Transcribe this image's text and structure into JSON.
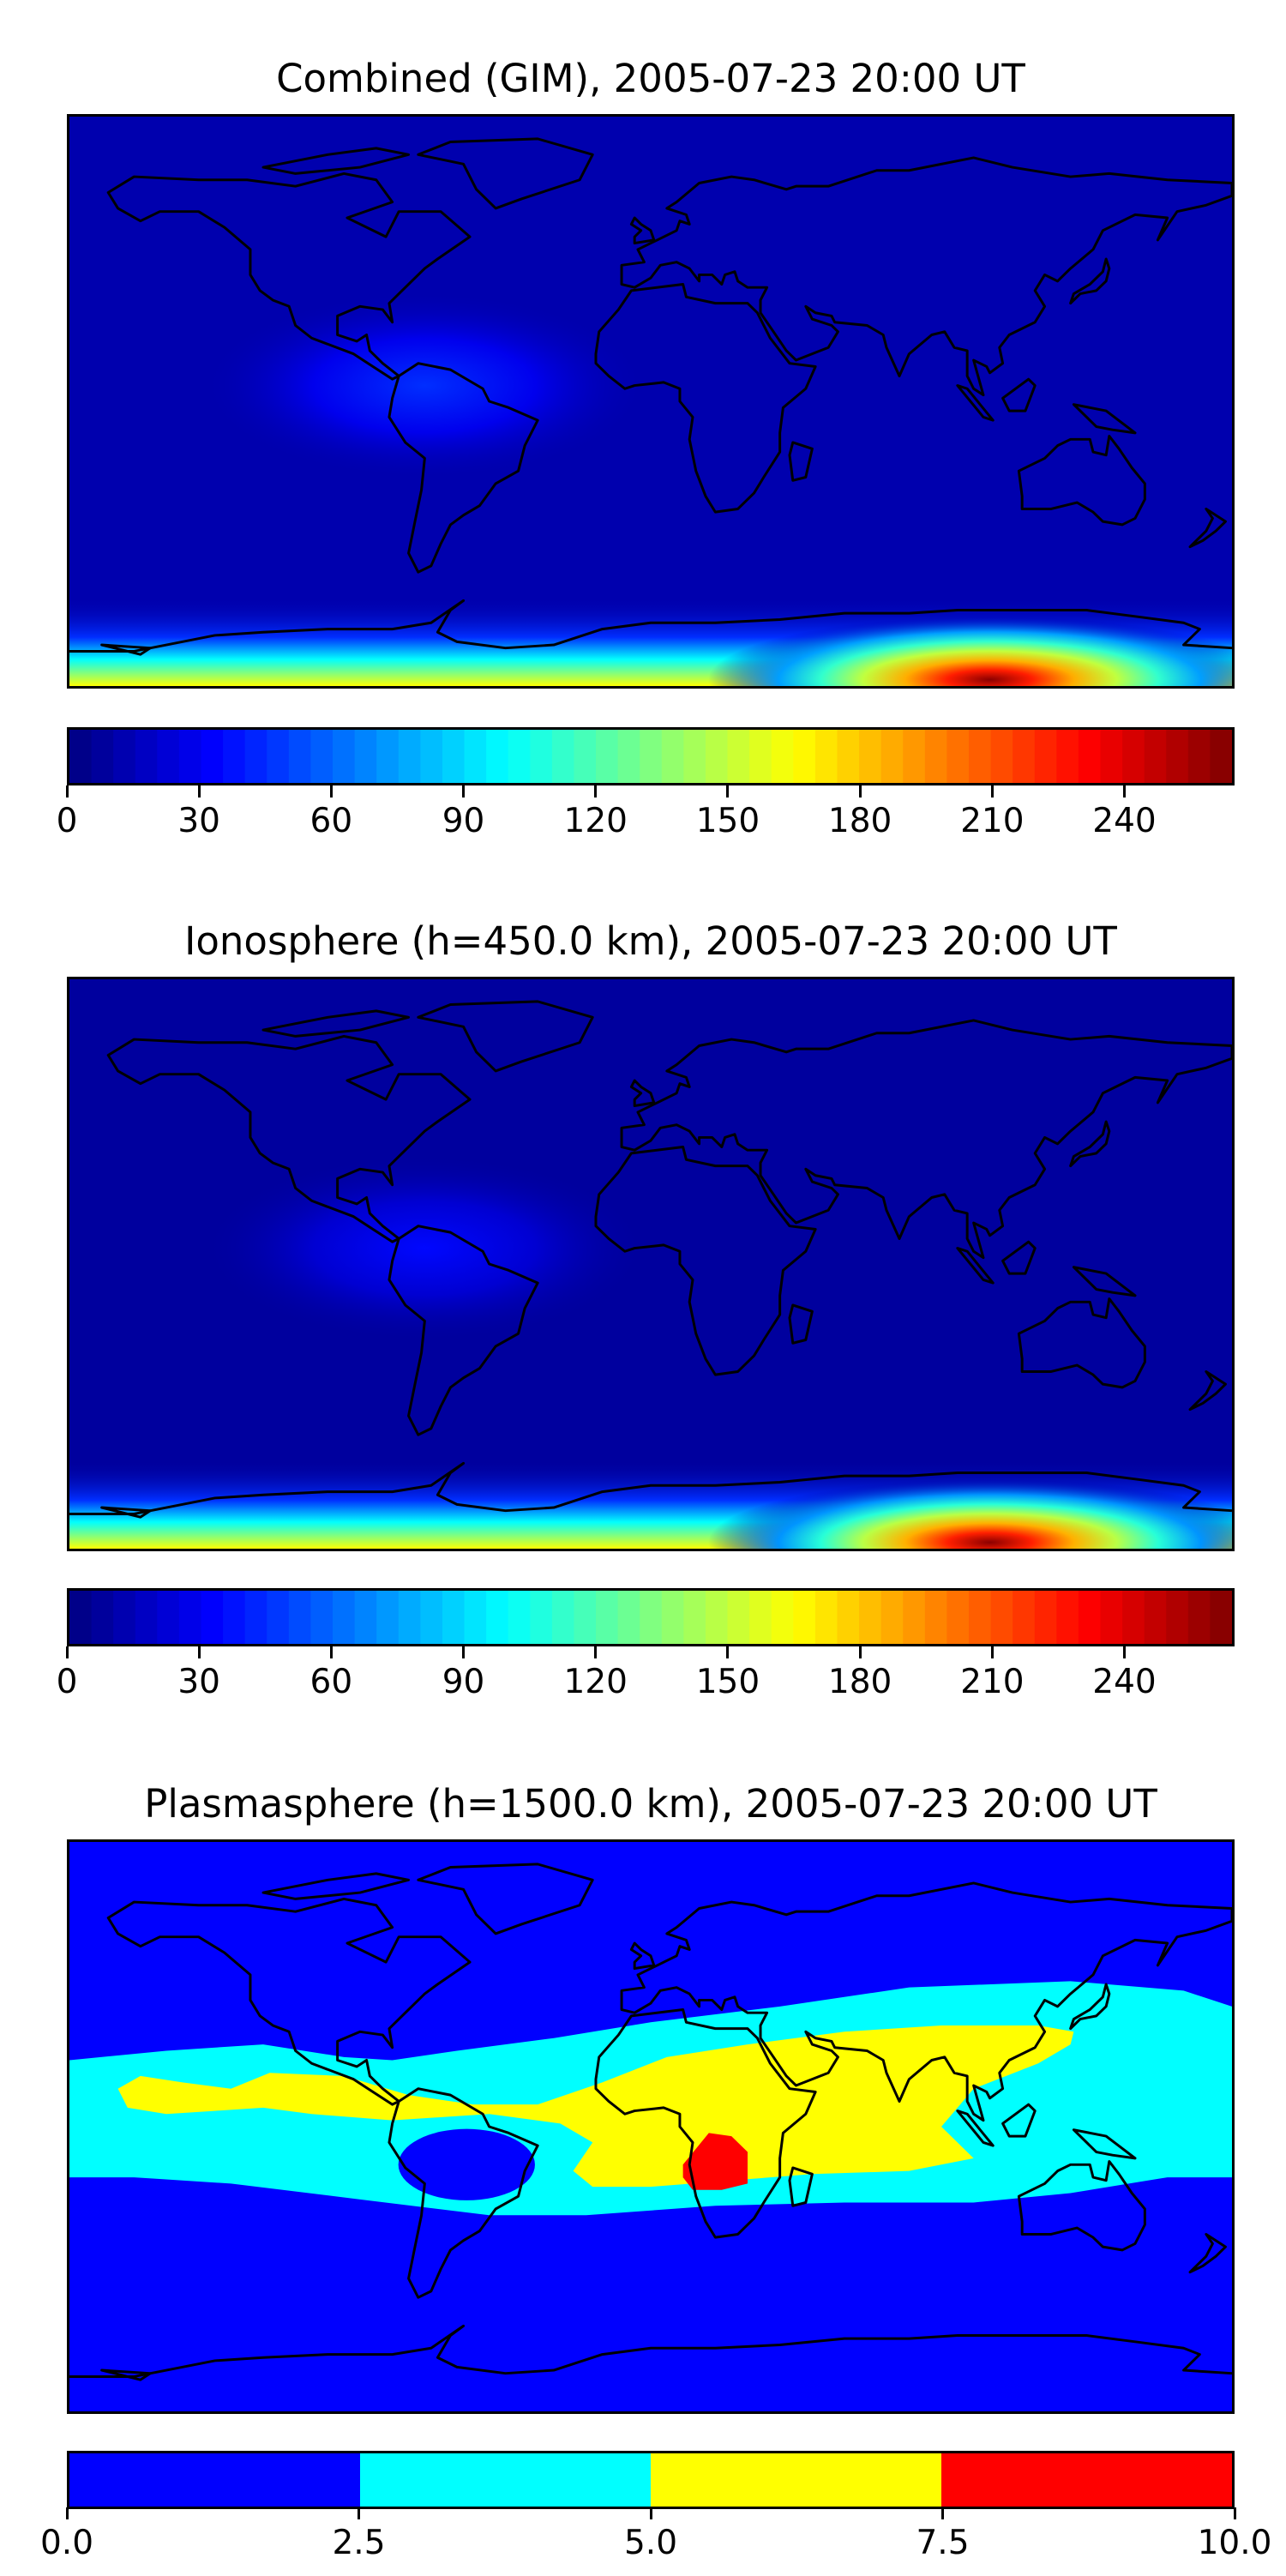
{
  "panels": [
    {
      "id": "combined",
      "title": "Combined (GIM), 2005-07-23 20:00 UT",
      "field": "smooth",
      "colorbar": {
        "min": 0,
        "max": 265,
        "step": 5,
        "ticks": [
          "0",
          "30",
          "60",
          "90",
          "120",
          "150",
          "180",
          "210",
          "240"
        ],
        "tick_values": [
          0,
          30,
          60,
          90,
          120,
          150,
          180,
          210,
          240
        ]
      },
      "background_level": 12,
      "features": [
        {
          "name": "equatorial-anomaly",
          "lon": -70,
          "lat": 5,
          "peak": 45
        },
        {
          "name": "southern-polar-peak",
          "lon": 105,
          "lat": -88,
          "peak": 262
        }
      ]
    },
    {
      "id": "ionosphere",
      "title": "Ionosphere  (h=450.0 km), 2005-07-23 20:00 UT",
      "field": "smooth",
      "colorbar": {
        "min": 0,
        "max": 265,
        "step": 5,
        "ticks": [
          "0",
          "30",
          "60",
          "90",
          "120",
          "150",
          "180",
          "210",
          "240"
        ],
        "tick_values": [
          0,
          30,
          60,
          90,
          120,
          150,
          180,
          210,
          240
        ]
      },
      "background_level": 8,
      "features": [
        {
          "name": "equatorial-anomaly",
          "lon": -70,
          "lat": 5,
          "peak": 35
        },
        {
          "name": "southern-polar-peak",
          "lon": 105,
          "lat": -88,
          "peak": 262
        }
      ]
    },
    {
      "id": "plasmasphere",
      "title": "Plasmasphere (h=1500.0 km), 2005-07-23 20:00 UT",
      "field": "discrete",
      "colorbar": {
        "min": 0,
        "max": 10,
        "levels": [
          0,
          2.5,
          5,
          7.5,
          10
        ],
        "ticks": [
          "0.0",
          "2.5",
          "5.0",
          "7.5",
          "10.0"
        ],
        "tick_values": [
          0,
          2.5,
          5,
          7.5,
          10
        ]
      }
    }
  ],
  "colors": {
    "coastline": "#000000",
    "background": "#ffffff"
  }
}
